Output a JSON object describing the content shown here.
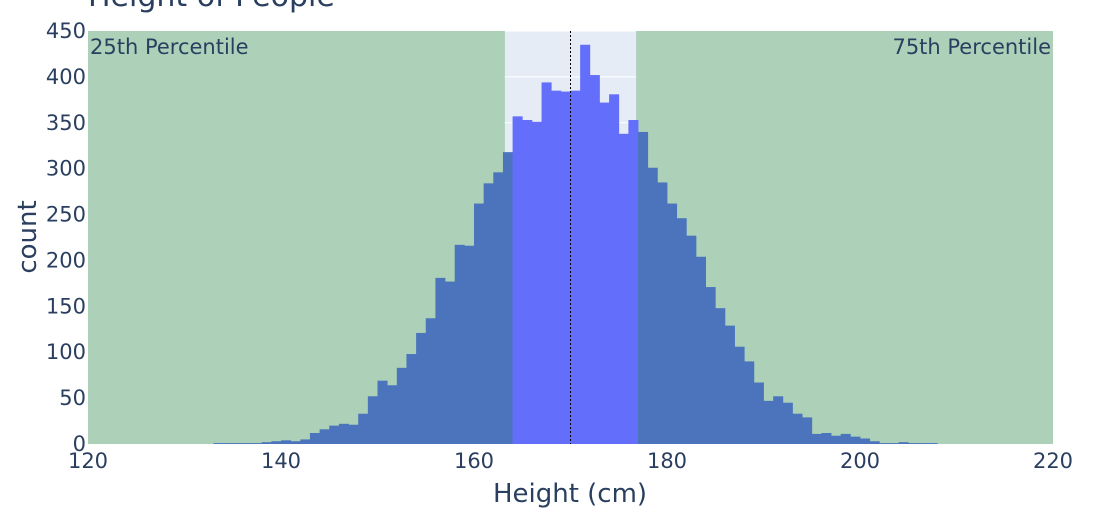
{
  "chart_data": {
    "type": "bar",
    "title": "Height of People",
    "xlabel": "Height (cm)",
    "ylabel": "count",
    "xlim": [
      120,
      220
    ],
    "ylim": [
      0,
      450
    ],
    "x_ticks": [
      120,
      140,
      160,
      180,
      200,
      220
    ],
    "y_ticks": [
      0,
      50,
      100,
      150,
      200,
      250,
      300,
      350,
      400,
      450
    ],
    "bin_width": 1,
    "bins_x": [
      133,
      134,
      135,
      136,
      137,
      138,
      139,
      140,
      141,
      142,
      143,
      144,
      145,
      146,
      147,
      148,
      149,
      150,
      151,
      152,
      153,
      154,
      155,
      156,
      157,
      158,
      159,
      160,
      161,
      162,
      163,
      164,
      165,
      166,
      167,
      168,
      169,
      170,
      171,
      172,
      173,
      174,
      175,
      176,
      177,
      178,
      179,
      180,
      181,
      182,
      183,
      184,
      185,
      186,
      187,
      188,
      189,
      190,
      191,
      192,
      193,
      194,
      195,
      196,
      197,
      198,
      199,
      200,
      201,
      202,
      203,
      204,
      205,
      206,
      207
    ],
    "counts": [
      1,
      1,
      1,
      1,
      1,
      2,
      3,
      4,
      3,
      5,
      12,
      16,
      20,
      22,
      21,
      33,
      52,
      69,
      64,
      83,
      98,
      121,
      137,
      181,
      177,
      217,
      216,
      262,
      284,
      296,
      318,
      357,
      353,
      351,
      394,
      385,
      384,
      385,
      435,
      402,
      372,
      381,
      338,
      353,
      340,
      301,
      285,
      262,
      246,
      227,
      204,
      171,
      148,
      129,
      106,
      90,
      67,
      47,
      52,
      45,
      33,
      29,
      11,
      12,
      9,
      11,
      8,
      6,
      3,
      1,
      1,
      2,
      1,
      1,
      1
    ],
    "median": 170,
    "percentile_bands": [
      {
        "label": "25th Percentile",
        "from": 120,
        "to": 163.2,
        "color": "#acd1b8"
      },
      {
        "label": "75th Percentile",
        "from": 176.8,
        "to": 220,
        "color": "#acd1b8"
      }
    ],
    "colors": {
      "bar_outside": "#4b74bc",
      "bar_inside": "#636efa",
      "plot_background": "#e5ecf6",
      "band": "#acd1b8",
      "text": "#2a3f5f",
      "median_line": "#000000"
    },
    "grid": true
  }
}
